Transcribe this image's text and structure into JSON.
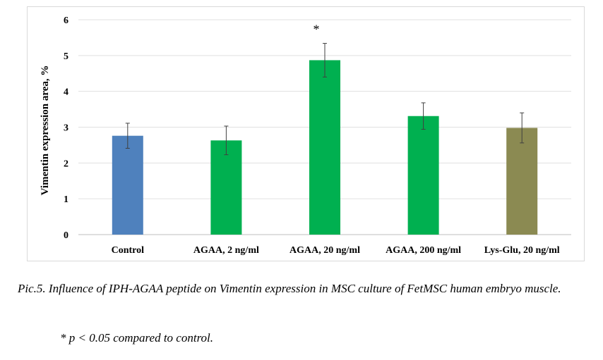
{
  "chart_data": {
    "type": "bar",
    "title": "",
    "xlabel": "",
    "ylabel": "Vimentin expression area, %",
    "ylim": [
      0,
      6
    ],
    "yticks": [
      0,
      1,
      2,
      3,
      4,
      5,
      6
    ],
    "grid": true,
    "legend": "none",
    "categories": [
      "Control",
      "AGAA, 2 ng/ml",
      "AGAA, 20 ng/ml",
      "AGAA, 200 ng/ml",
      "Lys-Glu, 20 ng/ml"
    ],
    "values": [
      2.76,
      2.63,
      4.87,
      3.31,
      2.98
    ],
    "errors": [
      0.35,
      0.4,
      0.47,
      0.37,
      0.42
    ],
    "colors": [
      "#4f81bd",
      "#00b050",
      "#00b050",
      "#00b050",
      "#8b8a52"
    ],
    "annotations": [
      {
        "category": "AGAA, 20 ng/ml",
        "text": "*"
      }
    ]
  },
  "caption": "Pic.5. Influence of IPH-AGAA peptide on Vimentin expression in MSC culture of FetMSC human embryo muscle.",
  "footnote": "* p < 0.05 compared to control."
}
